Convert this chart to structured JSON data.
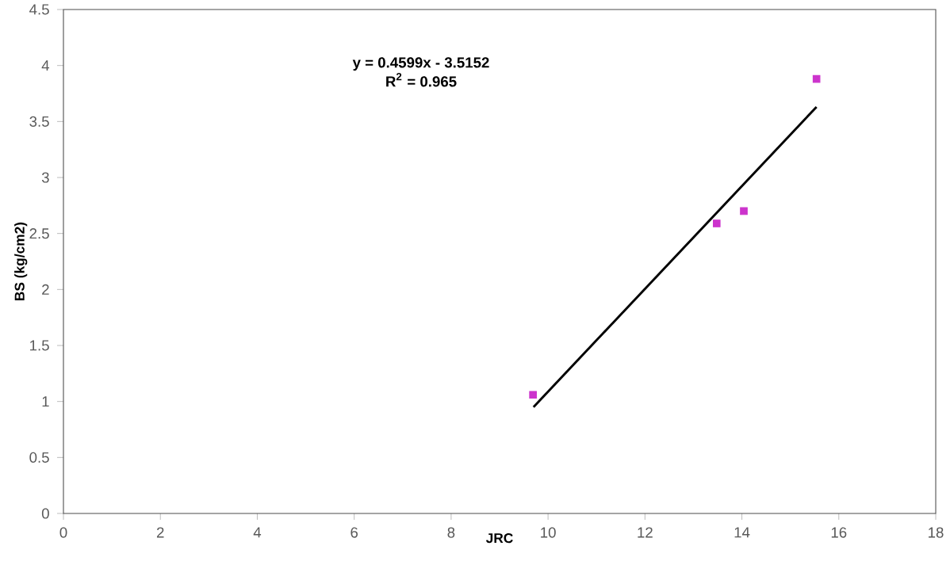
{
  "chart_data": {
    "type": "scatter",
    "xlabel": "JRC",
    "ylabel": "BS (kg/cm2)",
    "annotations": [
      "y = 0.4599x - 3.5152",
      "R$^{2}$ = 0.965"
    ],
    "xlim": [
      0,
      18
    ],
    "xticks": [
      0,
      2,
      4,
      6,
      8,
      10,
      12,
      14,
      16,
      18
    ],
    "ylim": [
      0,
      4.5
    ],
    "yticks": [
      0,
      0.5,
      1,
      1.5,
      2,
      2.5,
      3,
      3.5,
      4,
      4.5
    ],
    "grid": false,
    "marker": "square",
    "series": [
      {
        "color": "#cc33cc",
        "x": [
          9.69,
          13.48,
          14.04,
          15.54
        ],
        "values": [
          1.06,
          2.59,
          2.7,
          3.88
        ]
      },
      {
        "type": "line",
        "color": "#000000",
        "marker": "none",
        "line_style": "solid",
        "x": [
          9.7,
          15.54
        ],
        "values": [
          0.95,
          3.63
        ]
      }
    ]
  }
}
